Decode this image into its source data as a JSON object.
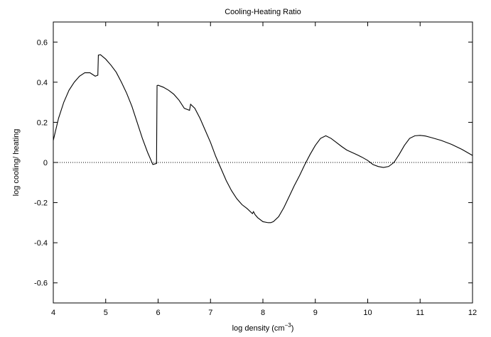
{
  "chart_data": {
    "type": "line",
    "title": "Cooling-Heating  Ratio",
    "xlabel": "log density (cm",
    "xlabel_unit_exp": "−3",
    "xlabel_close": ")",
    "ylabel": "log cooling/ heating",
    "xlim": [
      4,
      12
    ],
    "ylim": [
      -0.7,
      0.7
    ],
    "xticks": [
      "4",
      "5",
      "6",
      "7",
      "8",
      "9",
      "10",
      "11",
      "12"
    ],
    "yticks": [
      "0.6",
      "0.4",
      "0.2",
      "0",
      "-0.2",
      "-0.4",
      "-0.6"
    ],
    "grid": false,
    "reference_line": {
      "y": 0,
      "style": "dotted"
    },
    "series": [
      {
        "x": [
          4.0,
          4.1,
          4.2,
          4.3,
          4.4,
          4.5,
          4.6,
          4.7,
          4.8,
          4.85,
          4.86,
          4.9,
          5.0,
          5.1,
          5.2,
          5.3,
          5.4,
          5.5,
          5.6,
          5.7,
          5.8,
          5.9,
          5.97,
          5.98,
          6.0,
          6.1,
          6.2,
          6.3,
          6.4,
          6.5,
          6.6,
          6.62,
          6.7,
          6.8,
          6.9,
          7.0,
          7.1,
          7.2,
          7.3,
          7.4,
          7.5,
          7.6,
          7.7,
          7.8,
          7.82,
          7.85,
          7.9,
          8.0,
          8.1,
          8.15,
          8.2,
          8.3,
          8.4,
          8.5,
          8.6,
          8.7,
          8.8,
          8.9,
          9.0,
          9.1,
          9.2,
          9.3,
          9.4,
          9.5,
          9.6,
          9.7,
          9.8,
          9.9,
          10.0,
          10.1,
          10.2,
          10.3,
          10.4,
          10.5,
          10.6,
          10.7,
          10.8,
          10.9,
          11.0,
          11.1,
          11.2,
          11.4,
          11.6,
          11.8,
          12.0
        ],
        "y": [
          0.11,
          0.22,
          0.3,
          0.36,
          0.4,
          0.43,
          0.447,
          0.447,
          0.43,
          0.435,
          0.535,
          0.537,
          0.515,
          0.485,
          0.45,
          0.4,
          0.345,
          0.28,
          0.2,
          0.12,
          0.05,
          -0.01,
          -0.005,
          0.383,
          0.385,
          0.375,
          0.36,
          0.34,
          0.31,
          0.27,
          0.26,
          0.29,
          0.27,
          0.22,
          0.16,
          0.1,
          0.03,
          -0.03,
          -0.09,
          -0.14,
          -0.18,
          -0.21,
          -0.23,
          -0.255,
          -0.245,
          -0.26,
          -0.275,
          -0.295,
          -0.3,
          -0.3,
          -0.295,
          -0.27,
          -0.225,
          -0.17,
          -0.115,
          -0.065,
          -0.01,
          0.04,
          0.085,
          0.12,
          0.133,
          0.12,
          0.1,
          0.08,
          0.062,
          0.05,
          0.038,
          0.025,
          0.01,
          -0.01,
          -0.02,
          -0.025,
          -0.02,
          0.0,
          0.04,
          0.085,
          0.12,
          0.133,
          0.135,
          0.132,
          0.125,
          0.11,
          0.09,
          0.065,
          0.035
        ]
      }
    ]
  }
}
